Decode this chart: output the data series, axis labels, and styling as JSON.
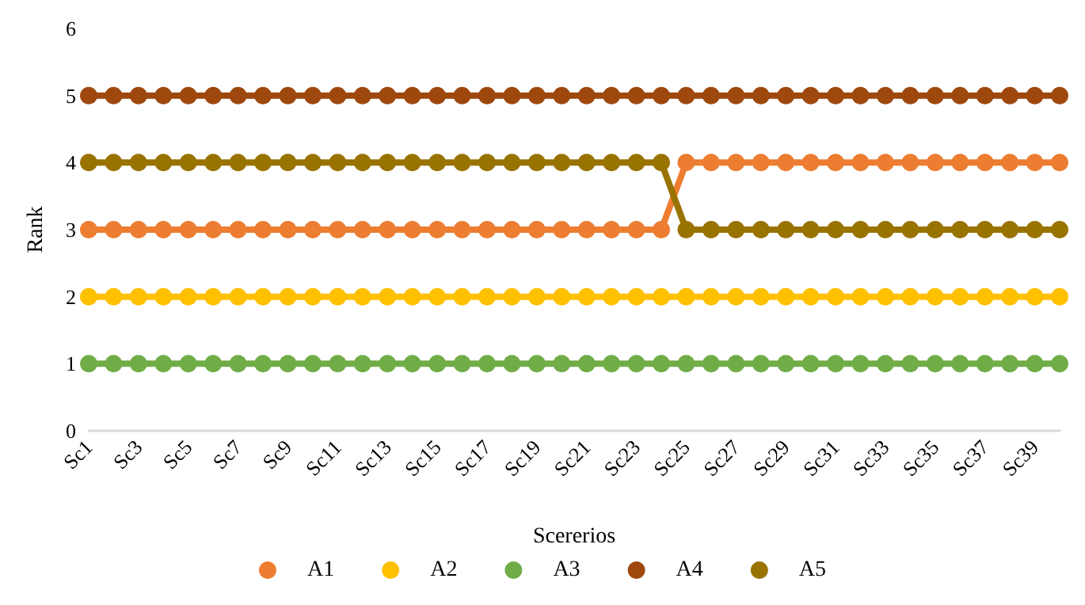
{
  "chart_data": {
    "type": "line",
    "xlabel": "Scererios",
    "ylabel": "Rank",
    "categories": [
      "Sc1",
      null,
      "Sc3",
      null,
      "Sc5",
      null,
      "Sc7",
      null,
      "Sc9",
      null,
      "Sc11",
      null,
      "Sc13",
      null,
      "Sc15",
      null,
      "Sc17",
      null,
      "Sc19",
      null,
      "Sc21",
      null,
      "Sc23",
      null,
      "Sc25",
      null,
      "Sc27",
      null,
      "Sc29",
      null,
      "Sc31",
      null,
      "Sc33",
      null,
      "Sc35",
      null,
      "Sc37",
      null,
      "Sc39",
      null
    ],
    "series": [
      {
        "name": "A1",
        "color": "#ed7d31",
        "values": [
          3,
          3,
          3,
          3,
          3,
          3,
          3,
          3,
          3,
          3,
          3,
          3,
          3,
          3,
          3,
          3,
          3,
          3,
          3,
          3,
          3,
          3,
          3,
          3,
          4,
          4,
          4,
          4,
          4,
          4,
          4,
          4,
          4,
          4,
          4,
          4,
          4,
          4,
          4,
          4
        ]
      },
      {
        "name": "A2",
        "color": "#ffc000",
        "values": [
          2,
          2,
          2,
          2,
          2,
          2,
          2,
          2,
          2,
          2,
          2,
          2,
          2,
          2,
          2,
          2,
          2,
          2,
          2,
          2,
          2,
          2,
          2,
          2,
          2,
          2,
          2,
          2,
          2,
          2,
          2,
          2,
          2,
          2,
          2,
          2,
          2,
          2,
          2,
          2
        ]
      },
      {
        "name": "A3",
        "color": "#70ad47",
        "values": [
          1,
          1,
          1,
          1,
          1,
          1,
          1,
          1,
          1,
          1,
          1,
          1,
          1,
          1,
          1,
          1,
          1,
          1,
          1,
          1,
          1,
          1,
          1,
          1,
          1,
          1,
          1,
          1,
          1,
          1,
          1,
          1,
          1,
          1,
          1,
          1,
          1,
          1,
          1,
          1
        ]
      },
      {
        "name": "A4",
        "color": "#9e480e",
        "values": [
          5,
          5,
          5,
          5,
          5,
          5,
          5,
          5,
          5,
          5,
          5,
          5,
          5,
          5,
          5,
          5,
          5,
          5,
          5,
          5,
          5,
          5,
          5,
          5,
          5,
          5,
          5,
          5,
          5,
          5,
          5,
          5,
          5,
          5,
          5,
          5,
          5,
          5,
          5,
          5
        ]
      },
      {
        "name": "A5",
        "color": "#997300",
        "values": [
          4,
          4,
          4,
          4,
          4,
          4,
          4,
          4,
          4,
          4,
          4,
          4,
          4,
          4,
          4,
          4,
          4,
          4,
          4,
          4,
          4,
          4,
          4,
          4,
          3,
          3,
          3,
          3,
          3,
          3,
          3,
          3,
          3,
          3,
          3,
          3,
          3,
          3,
          3,
          3
        ]
      }
    ],
    "ylim": [
      0,
      6
    ],
    "yticks": [
      0,
      1,
      2,
      3,
      4,
      5,
      6
    ],
    "grid": false,
    "legend": "bottom",
    "marker": "circle",
    "line_style": "solid"
  }
}
